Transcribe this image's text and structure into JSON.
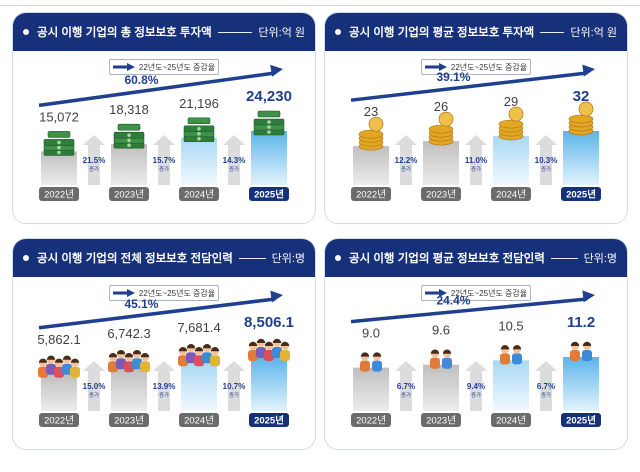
{
  "colors": {
    "header_bg": "#16317a",
    "arrow": "#1f3f8f",
    "bar_gray_top": "#bfbfbf",
    "bar_gray_bottom": "#ececec",
    "bar_blue_top": "#5bb4ea",
    "bar_blue_bottom": "#e3f3fc",
    "label_dark": "#404040",
    "label_accent": "#1f3f8f",
    "up_arrow": "#b9d8ef",
    "cash": "#2f7d3a",
    "coin": "#e2a623",
    "person_skin": "#f2c39a",
    "person_hair": "#4a2c1a"
  },
  "chart_data": [
    {
      "type": "bar",
      "title": "공시 이행 기업의 총 정보보호 투자액",
      "unit_label": "단위:억 원",
      "icon": "cash-stack",
      "categories": [
        "2022년",
        "2023년",
        "2024년",
        "2025년"
      ],
      "values": [
        15072,
        18318,
        21196,
        24230
      ],
      "value_labels": [
        "15,072",
        "18,318",
        "21,196",
        "24,230"
      ],
      "growth": [
        "21.5%",
        "15.7%",
        "14.3%"
      ],
      "growth_suffix": "증가",
      "overall_growth": "60.8%",
      "legend": "22년도~25년도 증감율"
    },
    {
      "type": "bar",
      "title": "공시 이행 기업의 평균 정보보호 투자액",
      "unit_label": "단위:억 원",
      "icon": "coin-stack",
      "categories": [
        "2022년",
        "2023년",
        "2024년",
        "2025년"
      ],
      "values": [
        23,
        26,
        29,
        32
      ],
      "value_labels": [
        "23",
        "26",
        "29",
        "32"
      ],
      "growth": [
        "12.2%",
        "11.0%",
        "10.3%"
      ],
      "growth_suffix": "증가",
      "overall_growth": "39.1%",
      "legend": "22년도~25년도 증감율"
    },
    {
      "type": "bar",
      "title": "공시 이행 기업의 전체 정보보호 전담인력",
      "unit_label": "단위:명",
      "icon": "people-group",
      "categories": [
        "2022년",
        "2023년",
        "2024년",
        "2025년"
      ],
      "values": [
        5862.1,
        6742.3,
        7681.4,
        8506.1
      ],
      "value_labels": [
        "5,862.1",
        "6,742.3",
        "7,681.4",
        "8,506.1"
      ],
      "growth": [
        "15.0%",
        "13.9%",
        "10.7%"
      ],
      "growth_suffix": "증가",
      "overall_growth": "45.1%",
      "legend": "22년도~25년도 증감율"
    },
    {
      "type": "bar",
      "title": "공시 이행 기업의 평균 정보보호 전담인력",
      "unit_label": "단위:명",
      "icon": "people-pair",
      "categories": [
        "2022년",
        "2023년",
        "2024년",
        "2025년"
      ],
      "values": [
        9.0,
        9.6,
        10.5,
        11.2
      ],
      "value_labels": [
        "9.0",
        "9.6",
        "10.5",
        "11.2"
      ],
      "growth": [
        "6.7%",
        "9.4%",
        "6.7%"
      ],
      "growth_suffix": "증가",
      "overall_growth": "24.4%",
      "legend": "22년도~25년도 증감율"
    }
  ]
}
